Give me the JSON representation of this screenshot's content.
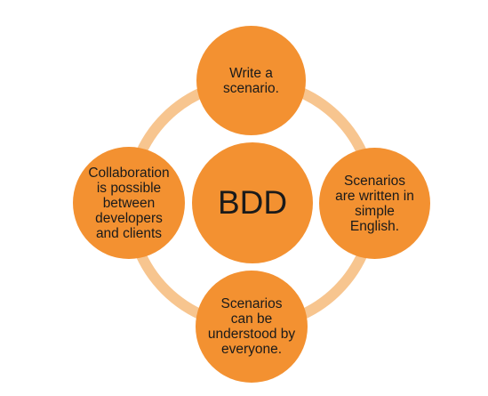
{
  "diagram": {
    "center": {
      "label": "BDD"
    },
    "nodes": [
      {
        "id": "top",
        "label": "Write a\nscenario."
      },
      {
        "id": "right",
        "label": "Scenarios\nare written in\nsimple\nEnglish."
      },
      {
        "id": "bottom",
        "label": "Scenarios\ncan be\nunderstood by\neveryone."
      },
      {
        "id": "left",
        "label": "Collaboration\nis possible\nbetween\ndevelopers\nand clients"
      }
    ]
  },
  "colors": {
    "node_fill": "#f39131",
    "ring_stroke": "#f7c58f",
    "text": "#1a1a1a"
  }
}
